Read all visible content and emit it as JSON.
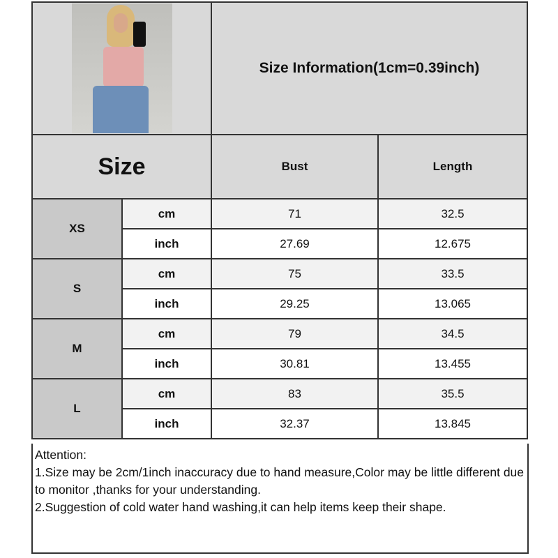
{
  "header": {
    "title": "Size Information(1cm=0.39inch)",
    "image": "product-photo"
  },
  "columns": {
    "size": "Size",
    "bust": "Bust",
    "length": "Length"
  },
  "rows": [
    {
      "size": "XS",
      "cm": {
        "unit": "cm",
        "bust": "71",
        "length": "32.5"
      },
      "inch": {
        "unit": "inch",
        "bust": "27.69",
        "length": "12.675"
      }
    },
    {
      "size": "S",
      "cm": {
        "unit": "cm",
        "bust": "75",
        "length": "33.5"
      },
      "inch": {
        "unit": "inch",
        "bust": "29.25",
        "length": "13.065"
      }
    },
    {
      "size": "M",
      "cm": {
        "unit": "cm",
        "bust": "79",
        "length": "34.5"
      },
      "inch": {
        "unit": "inch",
        "bust": "30.81",
        "length": "13.455"
      }
    },
    {
      "size": "L",
      "cm": {
        "unit": "cm",
        "bust": "83",
        "length": "35.5"
      },
      "inch": {
        "unit": "inch",
        "bust": "32.37",
        "length": "13.845"
      }
    }
  ],
  "attention": {
    "title": "Attention:",
    "lines": [
      "1.Size may be 2cm/1inch inaccuracy due to hand measure,Color may be little different due to monitor ,thanks for your understanding.",
      "2.Suggestion of cold water hand washing,it can help items keep their shape."
    ]
  }
}
